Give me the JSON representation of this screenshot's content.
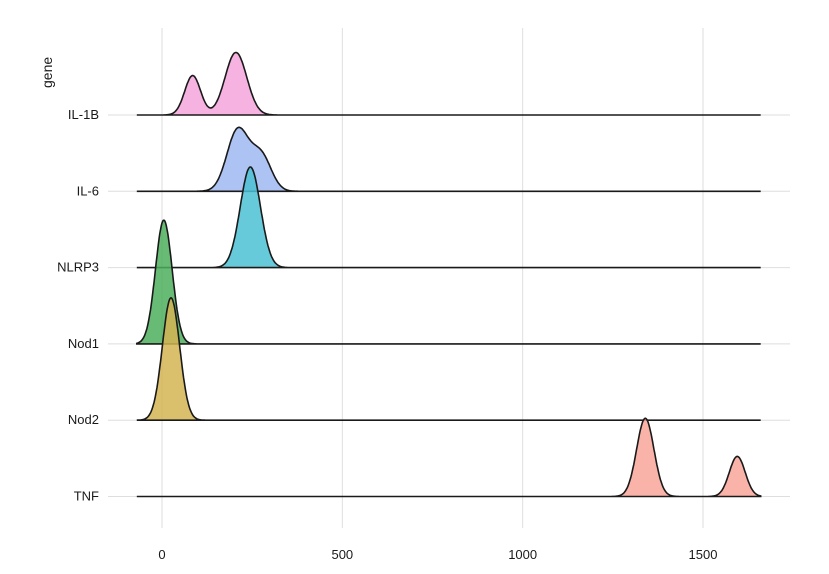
{
  "chart_data": {
    "type": "ridgeline",
    "ylabel": "gene",
    "xlabel": "",
    "title": "",
    "xlim": [
      -70,
      1660
    ],
    "x_ticks": [
      0,
      500,
      1000,
      1500
    ],
    "x_tick_labels": [
      "0",
      "500",
      "1000",
      "1500"
    ],
    "grid": "vertical major gridlines",
    "legend": "none",
    "series": [
      {
        "name": "IL-1B",
        "color": "#f4a6dc",
        "peaks": [
          {
            "center": 85,
            "sd": 22,
            "height": 0.58
          },
          {
            "center": 205,
            "sd": 30,
            "height": 0.92
          }
        ]
      },
      {
        "name": "IL-6",
        "color": "#9fb8f1",
        "peaks": [
          {
            "center": 210,
            "sd": 30,
            "height": 0.9
          },
          {
            "center": 275,
            "sd": 28,
            "height": 0.52
          }
        ]
      },
      {
        "name": "NLRP3",
        "color": "#4cc1d3",
        "peaks": [
          {
            "center": 245,
            "sd": 28,
            "height": 1.48
          }
        ]
      },
      {
        "name": "Nod1",
        "color": "#4caf5c",
        "peaks": [
          {
            "center": 5,
            "sd": 23,
            "height": 1.82
          }
        ]
      },
      {
        "name": "Nod2",
        "color": "#d4b454",
        "peaks": [
          {
            "center": 25,
            "sd": 24,
            "height": 1.8
          }
        ]
      },
      {
        "name": "TNF",
        "color": "#f9a69a",
        "peaks": [
          {
            "center": 1340,
            "sd": 24,
            "height": 1.15
          },
          {
            "center": 1595,
            "sd": 22,
            "height": 0.59
          }
        ]
      }
    ]
  }
}
